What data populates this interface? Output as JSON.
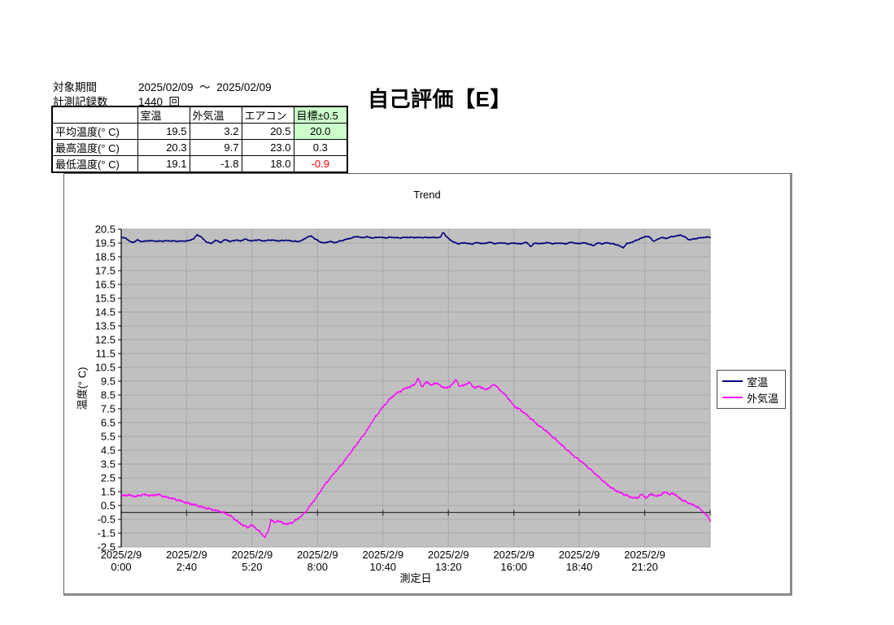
{
  "info": {
    "period_label": "対象期間",
    "period_value": "2025/02/09  ～  2025/02/09",
    "count_label": "計測記録数",
    "count_value": "1440  回"
  },
  "evaluation_title": "自己評価【E】",
  "stats_table": {
    "headers": [
      "",
      "室温",
      "外気温",
      "エアコン",
      "目標±0.5"
    ],
    "highlight_color": "#ccffcc",
    "negative_color": "#ff0000",
    "rows": [
      {
        "label": "平均温度(° C)",
        "values": [
          "19.5",
          "3.2",
          "20.5"
        ],
        "target": "20.0",
        "target_highlight": true,
        "target_negative": false
      },
      {
        "label": "最高温度(° C)",
        "values": [
          "20.3",
          "9.7",
          "23.0"
        ],
        "target": "0.3",
        "target_highlight": false,
        "target_negative": false
      },
      {
        "label": "最低温度(° C)",
        "values": [
          "19.1",
          "-1.8",
          "18.0"
        ],
        "target": "-0.9",
        "target_highlight": false,
        "target_negative": true
      }
    ]
  },
  "chart_data": {
    "type": "line",
    "title": "Trend",
    "xlabel": "測定日",
    "ylabel": "温度(° C)",
    "ylim": [
      -2.5,
      20.5
    ],
    "y_tick_step": 1.0,
    "y_tick_labels": [
      "20.5",
      "19.5",
      "18.5",
      "17.5",
      "16.5",
      "15.5",
      "14.5",
      "13.5",
      "12.5",
      "11.5",
      "10.5",
      "9.5",
      "8.5",
      "7.5",
      "6.5",
      "5.5",
      "4.5",
      "3.5",
      "2.5",
      "1.5",
      "0.5",
      "-0.5",
      "-1.5",
      "-2.5"
    ],
    "x_hours_range": [
      0,
      24
    ],
    "x_ticks": [
      {
        "date": "2025/2/9",
        "time": "0:00",
        "hour": 0
      },
      {
        "date": "2025/2/9",
        "time": "2:40",
        "hour": 2.6667
      },
      {
        "date": "2025/2/9",
        "time": "5:20",
        "hour": 5.3333
      },
      {
        "date": "2025/2/9",
        "time": "8:00",
        "hour": 8
      },
      {
        "date": "2025/2/9",
        "time": "10:40",
        "hour": 10.6667
      },
      {
        "date": "2025/2/9",
        "time": "13:20",
        "hour": 13.3333
      },
      {
        "date": "2025/2/9",
        "time": "16:00",
        "hour": 16
      },
      {
        "date": "2025/2/9",
        "time": "18:40",
        "hour": 18.6667
      },
      {
        "date": "2025/2/9",
        "time": "21:20",
        "hour": 21.3333
      }
    ],
    "grid_on": true,
    "legend_position": "right",
    "plot_bg_color": "#c0c0c0",
    "grid_color": "#a8a8a8",
    "axis_color": "#000000",
    "zero_line_value": 0,
    "zero_line_color": "#303030",
    "sample_step_hours": 0.033333,
    "series": [
      {
        "id": "room-temp",
        "name": "室温",
        "color": "#000080",
        "width": 1.6,
        "noise_amplitude": 0.05,
        "points": [
          [
            0,
            19.9
          ],
          [
            0.2,
            19.85
          ],
          [
            0.35,
            19.6
          ],
          [
            0.5,
            19.55
          ],
          [
            0.65,
            19.72
          ],
          [
            0.85,
            19.6
          ],
          [
            1.1,
            19.67
          ],
          [
            1.5,
            19.63
          ],
          [
            1.9,
            19.66
          ],
          [
            2.3,
            19.63
          ],
          [
            2.7,
            19.65
          ],
          [
            2.95,
            19.8
          ],
          [
            3.1,
            20.1
          ],
          [
            3.25,
            19.95
          ],
          [
            3.45,
            19.6
          ],
          [
            3.65,
            19.45
          ],
          [
            3.85,
            19.7
          ],
          [
            4.05,
            19.55
          ],
          [
            4.25,
            19.75
          ],
          [
            4.45,
            19.6
          ],
          [
            4.65,
            19.72
          ],
          [
            4.85,
            19.65
          ],
          [
            5.05,
            19.78
          ],
          [
            5.3,
            19.65
          ],
          [
            5.55,
            19.73
          ],
          [
            5.8,
            19.65
          ],
          [
            6.1,
            19.72
          ],
          [
            6.4,
            19.65
          ],
          [
            6.7,
            19.7
          ],
          [
            7,
            19.64
          ],
          [
            7.2,
            19.6
          ],
          [
            7.4,
            19.72
          ],
          [
            7.6,
            19.95
          ],
          [
            7.75,
            20.0
          ],
          [
            7.9,
            19.8
          ],
          [
            8.1,
            19.58
          ],
          [
            8.3,
            19.5
          ],
          [
            8.5,
            19.62
          ],
          [
            8.7,
            19.52
          ],
          [
            8.9,
            19.63
          ],
          [
            9.1,
            19.73
          ],
          [
            9.35,
            19.85
          ],
          [
            9.6,
            19.98
          ],
          [
            9.8,
            19.88
          ],
          [
            10,
            19.95
          ],
          [
            10.25,
            19.86
          ],
          [
            10.5,
            19.93
          ],
          [
            10.75,
            19.87
          ],
          [
            11,
            19.92
          ],
          [
            11.3,
            19.87
          ],
          [
            11.6,
            19.91
          ],
          [
            12,
            19.9
          ],
          [
            12.5,
            19.9
          ],
          [
            13,
            19.9
          ],
          [
            13.12,
            20.3
          ],
          [
            13.25,
            19.95
          ],
          [
            13.4,
            19.75
          ],
          [
            13.55,
            19.55
          ],
          [
            13.75,
            19.45
          ],
          [
            14,
            19.52
          ],
          [
            14.25,
            19.42
          ],
          [
            14.5,
            19.53
          ],
          [
            14.75,
            19.45
          ],
          [
            15,
            19.55
          ],
          [
            15.25,
            19.45
          ],
          [
            15.5,
            19.52
          ],
          [
            15.75,
            19.44
          ],
          [
            16,
            19.5
          ],
          [
            16.25,
            19.43
          ],
          [
            16.5,
            19.55
          ],
          [
            16.7,
            19.25
          ],
          [
            16.85,
            19.5
          ],
          [
            17.1,
            19.45
          ],
          [
            17.35,
            19.53
          ],
          [
            17.6,
            19.45
          ],
          [
            17.85,
            19.5
          ],
          [
            18.1,
            19.44
          ],
          [
            18.35,
            19.55
          ],
          [
            18.6,
            19.45
          ],
          [
            18.85,
            19.52
          ],
          [
            19.1,
            19.4
          ],
          [
            19.25,
            19.3
          ],
          [
            19.4,
            19.5
          ],
          [
            19.6,
            19.45
          ],
          [
            19.8,
            19.52
          ],
          [
            20,
            19.45
          ],
          [
            20.25,
            19.35
          ],
          [
            20.45,
            19.15
          ],
          [
            20.6,
            19.45
          ],
          [
            20.8,
            19.55
          ],
          [
            21,
            19.7
          ],
          [
            21.2,
            19.85
          ],
          [
            21.4,
            20.0
          ],
          [
            21.55,
            19.9
          ],
          [
            21.7,
            19.62
          ],
          [
            21.85,
            19.75
          ],
          [
            22,
            19.9
          ],
          [
            22.2,
            19.83
          ],
          [
            22.4,
            19.95
          ],
          [
            22.6,
            20.0
          ],
          [
            22.8,
            20.08
          ],
          [
            23,
            19.9
          ],
          [
            23.15,
            19.72
          ],
          [
            23.3,
            19.78
          ],
          [
            23.5,
            19.85
          ],
          [
            23.7,
            19.9
          ],
          [
            24,
            19.93
          ]
        ]
      },
      {
        "id": "outdoor-temp",
        "name": "外気温",
        "color": "#ff00ff",
        "width": 1.4,
        "noise_amplitude": 0.1,
        "points": [
          [
            0,
            1.2
          ],
          [
            0.3,
            1.27
          ],
          [
            0.6,
            1.15
          ],
          [
            0.9,
            1.3
          ],
          [
            1.2,
            1.22
          ],
          [
            1.5,
            1.3
          ],
          [
            1.8,
            1.12
          ],
          [
            2.1,
            1.0
          ],
          [
            2.4,
            0.85
          ],
          [
            2.7,
            0.68
          ],
          [
            3,
            0.55
          ],
          [
            3.3,
            0.38
          ],
          [
            3.6,
            0.25
          ],
          [
            3.9,
            0.12
          ],
          [
            4.2,
            -0.02
          ],
          [
            4.5,
            -0.3
          ],
          [
            4.8,
            -0.75
          ],
          [
            5,
            -0.95
          ],
          [
            5.15,
            -1.1
          ],
          [
            5.3,
            -0.9
          ],
          [
            5.5,
            -1.15
          ],
          [
            5.7,
            -1.5
          ],
          [
            5.85,
            -1.8
          ],
          [
            6,
            -1.35
          ],
          [
            6.1,
            -0.5
          ],
          [
            6.25,
            -0.75
          ],
          [
            6.4,
            -0.6
          ],
          [
            6.6,
            -0.78
          ],
          [
            6.8,
            -0.85
          ],
          [
            7,
            -0.7
          ],
          [
            7.2,
            -0.45
          ],
          [
            7.45,
            -0.1
          ],
          [
            7.7,
            0.5
          ],
          [
            8,
            1.2
          ],
          [
            8.25,
            1.9
          ],
          [
            8.5,
            2.45
          ],
          [
            8.75,
            3.0
          ],
          [
            9,
            3.5
          ],
          [
            9.25,
            4.1
          ],
          [
            9.5,
            4.7
          ],
          [
            9.75,
            5.3
          ],
          [
            10,
            5.9
          ],
          [
            10.2,
            6.5
          ],
          [
            10.4,
            7.0
          ],
          [
            10.6,
            7.5
          ],
          [
            10.8,
            7.9
          ],
          [
            11,
            8.3
          ],
          [
            11.2,
            8.6
          ],
          [
            11.4,
            8.8
          ],
          [
            11.6,
            9.0
          ],
          [
            11.8,
            9.1
          ],
          [
            12,
            9.35
          ],
          [
            12.1,
            9.7
          ],
          [
            12.25,
            9.1
          ],
          [
            12.45,
            9.45
          ],
          [
            12.65,
            9.2
          ],
          [
            12.85,
            9.4
          ],
          [
            13.05,
            9.1
          ],
          [
            13.3,
            9.0
          ],
          [
            13.5,
            9.3
          ],
          [
            13.65,
            9.6
          ],
          [
            13.8,
            9.1
          ],
          [
            14,
            9.25
          ],
          [
            14.2,
            9.4
          ],
          [
            14.4,
            9.0
          ],
          [
            14.6,
            9.15
          ],
          [
            14.8,
            8.9
          ],
          [
            15,
            9.0
          ],
          [
            15.2,
            9.3
          ],
          [
            15.4,
            8.9
          ],
          [
            15.6,
            8.6
          ],
          [
            15.8,
            8.2
          ],
          [
            16,
            7.7
          ],
          [
            16.25,
            7.45
          ],
          [
            16.5,
            7.1
          ],
          [
            16.75,
            6.7
          ],
          [
            17,
            6.3
          ],
          [
            17.25,
            6.0
          ],
          [
            17.5,
            5.6
          ],
          [
            17.75,
            5.2
          ],
          [
            18,
            4.8
          ],
          [
            18.25,
            4.4
          ],
          [
            18.5,
            4.0
          ],
          [
            18.75,
            3.7
          ],
          [
            19,
            3.3
          ],
          [
            19.25,
            2.9
          ],
          [
            19.5,
            2.5
          ],
          [
            19.75,
            2.1
          ],
          [
            20,
            1.75
          ],
          [
            20.25,
            1.5
          ],
          [
            20.5,
            1.3
          ],
          [
            20.75,
            1.12
          ],
          [
            21,
            1.02
          ],
          [
            21.2,
            1.3
          ],
          [
            21.4,
            1.05
          ],
          [
            21.6,
            1.35
          ],
          [
            21.8,
            1.15
          ],
          [
            22,
            1.3
          ],
          [
            22.2,
            1.5
          ],
          [
            22.35,
            1.28
          ],
          [
            22.5,
            1.4
          ],
          [
            22.7,
            1.1
          ],
          [
            22.9,
            0.85
          ],
          [
            23.1,
            0.7
          ],
          [
            23.3,
            0.55
          ],
          [
            23.5,
            0.38
          ],
          [
            23.7,
            0.1
          ],
          [
            23.85,
            -0.2
          ],
          [
            24,
            -0.55
          ]
        ]
      }
    ]
  }
}
